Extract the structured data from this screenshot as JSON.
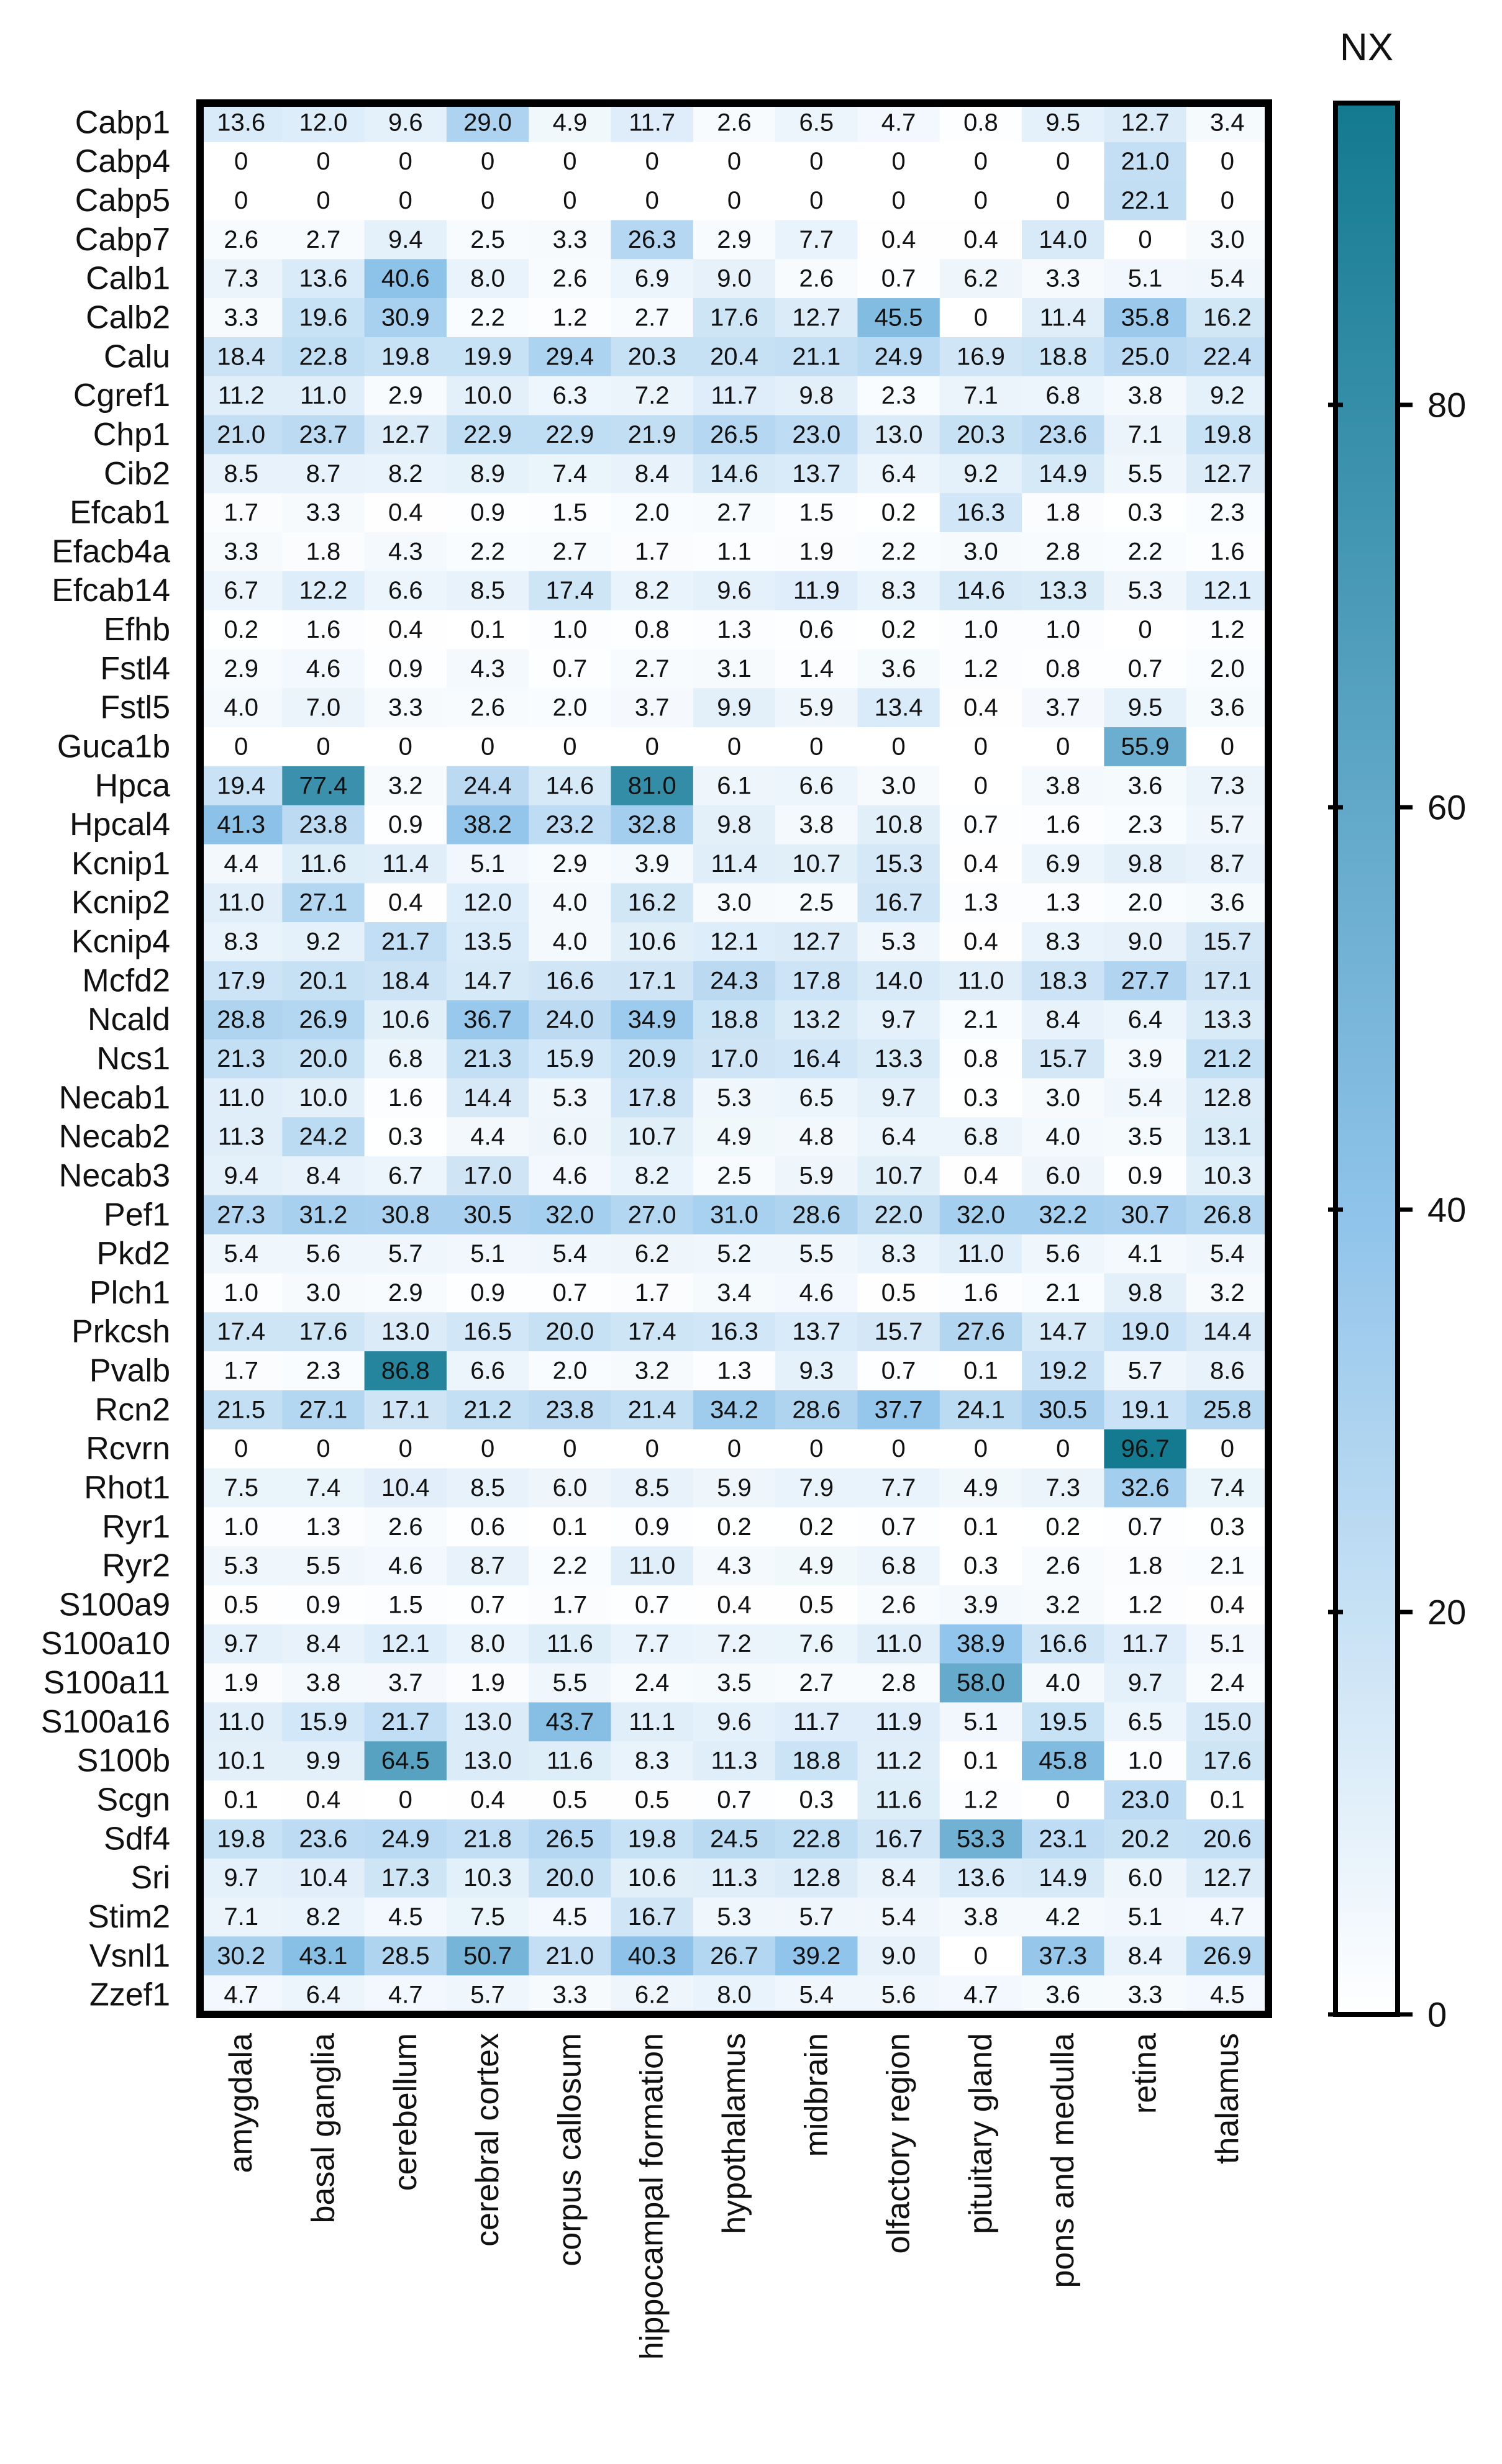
{
  "chart_data": {
    "type": "heatmap",
    "colorbar": {
      "title": "NX",
      "min": 0,
      "max": 95,
      "ticks": [
        0,
        20,
        40,
        60,
        80
      ],
      "tick_labels": [
        "0",
        "20",
        "40",
        "60",
        "80"
      ],
      "color_low": "#ffffff",
      "color_mid": "#8fc3ea",
      "color_high": "#137a8f"
    },
    "columns": [
      "amygdala",
      "basal ganglia",
      "cerebellum",
      "cerebral cortex",
      "corpus callosum",
      "hippocampal formation",
      "hypothalamus",
      "midbrain",
      "olfactory region",
      "pituitary gland",
      "pons and medulla",
      "retina",
      "thalamus"
    ],
    "rows": [
      {
        "gene": "Cabp1",
        "values": [
          "13.6",
          "12.0",
          "9.6",
          "29.0",
          "4.9",
          "11.7",
          "2.6",
          "6.5",
          "4.7",
          "0.8",
          "9.5",
          "12.7",
          "3.4"
        ]
      },
      {
        "gene": "Cabp4",
        "values": [
          "0",
          "0",
          "0",
          "0",
          "0",
          "0",
          "0",
          "0",
          "0",
          "0",
          "0",
          "21.0",
          "0"
        ]
      },
      {
        "gene": "Cabp5",
        "values": [
          "0",
          "0",
          "0",
          "0",
          "0",
          "0",
          "0",
          "0",
          "0",
          "0",
          "0",
          "22.1",
          "0"
        ]
      },
      {
        "gene": "Cabp7",
        "values": [
          "2.6",
          "2.7",
          "9.4",
          "2.5",
          "3.3",
          "26.3",
          "2.9",
          "7.7",
          "0.4",
          "0.4",
          "14.0",
          "0",
          "3.0"
        ]
      },
      {
        "gene": "Calb1",
        "values": [
          "7.3",
          "13.6",
          "40.6",
          "8.0",
          "2.6",
          "6.9",
          "9.0",
          "2.6",
          "0.7",
          "6.2",
          "3.3",
          "5.1",
          "5.4"
        ]
      },
      {
        "gene": "Calb2",
        "values": [
          "3.3",
          "19.6",
          "30.9",
          "2.2",
          "1.2",
          "2.7",
          "17.6",
          "12.7",
          "45.5",
          "0",
          "11.4",
          "35.8",
          "16.2"
        ]
      },
      {
        "gene": "Calu",
        "values": [
          "18.4",
          "22.8",
          "19.8",
          "19.9",
          "29.4",
          "20.3",
          "20.4",
          "21.1",
          "24.9",
          "16.9",
          "18.8",
          "25.0",
          "22.4"
        ]
      },
      {
        "gene": "Cgref1",
        "values": [
          "11.2",
          "11.0",
          "2.9",
          "10.0",
          "6.3",
          "7.2",
          "11.7",
          "9.8",
          "2.3",
          "7.1",
          "6.8",
          "3.8",
          "9.2"
        ]
      },
      {
        "gene": "Chp1",
        "values": [
          "21.0",
          "23.7",
          "12.7",
          "22.9",
          "22.9",
          "21.9",
          "26.5",
          "23.0",
          "13.0",
          "20.3",
          "23.6",
          "7.1",
          "19.8"
        ]
      },
      {
        "gene": "Cib2",
        "values": [
          "8.5",
          "8.7",
          "8.2",
          "8.9",
          "7.4",
          "8.4",
          "14.6",
          "13.7",
          "6.4",
          "9.2",
          "14.9",
          "5.5",
          "12.7"
        ]
      },
      {
        "gene": "Efcab1",
        "values": [
          "1.7",
          "3.3",
          "0.4",
          "0.9",
          "1.5",
          "2.0",
          "2.7",
          "1.5",
          "0.2",
          "16.3",
          "1.8",
          "0.3",
          "2.3"
        ]
      },
      {
        "gene": "Efacb4a",
        "values": [
          "3.3",
          "1.8",
          "4.3",
          "2.2",
          "2.7",
          "1.7",
          "1.1",
          "1.9",
          "2.2",
          "3.0",
          "2.8",
          "2.2",
          "1.6"
        ]
      },
      {
        "gene": "Efcab14",
        "values": [
          "6.7",
          "12.2",
          "6.6",
          "8.5",
          "17.4",
          "8.2",
          "9.6",
          "11.9",
          "8.3",
          "14.6",
          "13.3",
          "5.3",
          "12.1"
        ]
      },
      {
        "gene": "Efhb",
        "values": [
          "0.2",
          "1.6",
          "0.4",
          "0.1",
          "1.0",
          "0.8",
          "1.3",
          "0.6",
          "0.2",
          "1.0",
          "1.0",
          "0",
          "1.2"
        ]
      },
      {
        "gene": "Fstl4",
        "values": [
          "2.9",
          "4.6",
          "0.9",
          "4.3",
          "0.7",
          "2.7",
          "3.1",
          "1.4",
          "3.6",
          "1.2",
          "0.8",
          "0.7",
          "2.0"
        ]
      },
      {
        "gene": "Fstl5",
        "values": [
          "4.0",
          "7.0",
          "3.3",
          "2.6",
          "2.0",
          "3.7",
          "9.9",
          "5.9",
          "13.4",
          "0.4",
          "3.7",
          "9.5",
          "3.6"
        ]
      },
      {
        "gene": "Guca1b",
        "values": [
          "0",
          "0",
          "0",
          "0",
          "0",
          "0",
          "0",
          "0",
          "0",
          "0",
          "0",
          "55.9",
          "0"
        ]
      },
      {
        "gene": "Hpca",
        "values": [
          "19.4",
          "77.4",
          "3.2",
          "24.4",
          "14.6",
          "81.0",
          "6.1",
          "6.6",
          "3.0",
          "0",
          "3.8",
          "3.6",
          "7.3"
        ]
      },
      {
        "gene": "Hpcal4",
        "values": [
          "41.3",
          "23.8",
          "0.9",
          "38.2",
          "23.2",
          "32.8",
          "9.8",
          "3.8",
          "10.8",
          "0.7",
          "1.6",
          "2.3",
          "5.7"
        ]
      },
      {
        "gene": "Kcnip1",
        "values": [
          "4.4",
          "11.6",
          "11.4",
          "5.1",
          "2.9",
          "3.9",
          "11.4",
          "10.7",
          "15.3",
          "0.4",
          "6.9",
          "9.8",
          "8.7"
        ]
      },
      {
        "gene": "Kcnip2",
        "values": [
          "11.0",
          "27.1",
          "0.4",
          "12.0",
          "4.0",
          "16.2",
          "3.0",
          "2.5",
          "16.7",
          "1.3",
          "1.3",
          "2.0",
          "3.6"
        ]
      },
      {
        "gene": "Kcnip4",
        "values": [
          "8.3",
          "9.2",
          "21.7",
          "13.5",
          "4.0",
          "10.6",
          "12.1",
          "12.7",
          "5.3",
          "0.4",
          "8.3",
          "9.0",
          "15.7"
        ]
      },
      {
        "gene": "Mcfd2",
        "values": [
          "17.9",
          "20.1",
          "18.4",
          "14.7",
          "16.6",
          "17.1",
          "24.3",
          "17.8",
          "14.0",
          "11.0",
          "18.3",
          "27.7",
          "17.1"
        ]
      },
      {
        "gene": "Ncald",
        "values": [
          "28.8",
          "26.9",
          "10.6",
          "36.7",
          "24.0",
          "34.9",
          "18.8",
          "13.2",
          "9.7",
          "2.1",
          "8.4",
          "6.4",
          "13.3"
        ]
      },
      {
        "gene": "Ncs1",
        "values": [
          "21.3",
          "20.0",
          "6.8",
          "21.3",
          "15.9",
          "20.9",
          "17.0",
          "16.4",
          "13.3",
          "0.8",
          "15.7",
          "3.9",
          "21.2"
        ]
      },
      {
        "gene": "Necab1",
        "values": [
          "11.0",
          "10.0",
          "1.6",
          "14.4",
          "5.3",
          "17.8",
          "5.3",
          "6.5",
          "9.7",
          "0.3",
          "3.0",
          "5.4",
          "12.8"
        ]
      },
      {
        "gene": "Necab2",
        "values": [
          "11.3",
          "24.2",
          "0.3",
          "4.4",
          "6.0",
          "10.7",
          "4.9",
          "4.8",
          "6.4",
          "6.8",
          "4.0",
          "3.5",
          "13.1"
        ]
      },
      {
        "gene": "Necab3",
        "values": [
          "9.4",
          "8.4",
          "6.7",
          "17.0",
          "4.6",
          "8.2",
          "2.5",
          "5.9",
          "10.7",
          "0.4",
          "6.0",
          "0.9",
          "10.3"
        ]
      },
      {
        "gene": "Pef1",
        "values": [
          "27.3",
          "31.2",
          "30.8",
          "30.5",
          "32.0",
          "27.0",
          "31.0",
          "28.6",
          "22.0",
          "32.0",
          "32.2",
          "30.7",
          "26.8"
        ]
      },
      {
        "gene": "Pkd2",
        "values": [
          "5.4",
          "5.6",
          "5.7",
          "5.1",
          "5.4",
          "6.2",
          "5.2",
          "5.5",
          "8.3",
          "11.0",
          "5.6",
          "4.1",
          "5.4"
        ]
      },
      {
        "gene": "Plch1",
        "values": [
          "1.0",
          "3.0",
          "2.9",
          "0.9",
          "0.7",
          "1.7",
          "3.4",
          "4.6",
          "0.5",
          "1.6",
          "2.1",
          "9.8",
          "3.2"
        ]
      },
      {
        "gene": "Prkcsh",
        "values": [
          "17.4",
          "17.6",
          "13.0",
          "16.5",
          "20.0",
          "17.4",
          "16.3",
          "13.7",
          "15.7",
          "27.6",
          "14.7",
          "19.0",
          "14.4"
        ]
      },
      {
        "gene": "Pvalb",
        "values": [
          "1.7",
          "2.3",
          "86.8",
          "6.6",
          "2.0",
          "3.2",
          "1.3",
          "9.3",
          "0.7",
          "0.1",
          "19.2",
          "5.7",
          "8.6"
        ]
      },
      {
        "gene": "Rcn2",
        "values": [
          "21.5",
          "27.1",
          "17.1",
          "21.2",
          "23.8",
          "21.4",
          "34.2",
          "28.6",
          "37.7",
          "24.1",
          "30.5",
          "19.1",
          "25.8"
        ]
      },
      {
        "gene": "Rcvrn",
        "values": [
          "0",
          "0",
          "0",
          "0",
          "0",
          "0",
          "0",
          "0",
          "0",
          "0",
          "0",
          "96.7",
          "0"
        ]
      },
      {
        "gene": "Rhot1",
        "values": [
          "7.5",
          "7.4",
          "10.4",
          "8.5",
          "6.0",
          "8.5",
          "5.9",
          "7.9",
          "7.7",
          "4.9",
          "7.3",
          "32.6",
          "7.4"
        ]
      },
      {
        "gene": "Ryr1",
        "values": [
          "1.0",
          "1.3",
          "2.6",
          "0.6",
          "0.1",
          "0.9",
          "0.2",
          "0.2",
          "0.7",
          "0.1",
          "0.2",
          "0.7",
          "0.3"
        ]
      },
      {
        "gene": "Ryr2",
        "values": [
          "5.3",
          "5.5",
          "4.6",
          "8.7",
          "2.2",
          "11.0",
          "4.3",
          "4.9",
          "6.8",
          "0.3",
          "2.6",
          "1.8",
          "2.1"
        ]
      },
      {
        "gene": "S100a9",
        "values": [
          "0.5",
          "0.9",
          "1.5",
          "0.7",
          "1.7",
          "0.7",
          "0.4",
          "0.5",
          "2.6",
          "3.9",
          "3.2",
          "1.2",
          "0.4"
        ]
      },
      {
        "gene": "S100a10",
        "values": [
          "9.7",
          "8.4",
          "12.1",
          "8.0",
          "11.6",
          "7.7",
          "7.2",
          "7.6",
          "11.0",
          "38.9",
          "16.6",
          "11.7",
          "5.1"
        ]
      },
      {
        "gene": "S100a11",
        "values": [
          "1.9",
          "3.8",
          "3.7",
          "1.9",
          "5.5",
          "2.4",
          "3.5",
          "2.7",
          "2.8",
          "58.0",
          "4.0",
          "9.7",
          "2.4"
        ]
      },
      {
        "gene": "S100a16",
        "values": [
          "11.0",
          "15.9",
          "21.7",
          "13.0",
          "43.7",
          "11.1",
          "9.6",
          "11.7",
          "11.9",
          "5.1",
          "19.5",
          "6.5",
          "15.0"
        ]
      },
      {
        "gene": "S100b",
        "values": [
          "10.1",
          "9.9",
          "64.5",
          "13.0",
          "11.6",
          "8.3",
          "11.3",
          "18.8",
          "11.2",
          "0.1",
          "45.8",
          "1.0",
          "17.6"
        ]
      },
      {
        "gene": "Scgn",
        "values": [
          "0.1",
          "0.4",
          "0",
          "0.4",
          "0.5",
          "0.5",
          "0.7",
          "0.3",
          "11.6",
          "1.2",
          "0",
          "23.0",
          "0.1"
        ]
      },
      {
        "gene": "Sdf4",
        "values": [
          "19.8",
          "23.6",
          "24.9",
          "21.8",
          "26.5",
          "19.8",
          "24.5",
          "22.8",
          "16.7",
          "53.3",
          "23.1",
          "20.2",
          "20.6"
        ]
      },
      {
        "gene": "Sri",
        "values": [
          "9.7",
          "10.4",
          "17.3",
          "10.3",
          "20.0",
          "10.6",
          "11.3",
          "12.8",
          "8.4",
          "13.6",
          "14.9",
          "6.0",
          "12.7"
        ]
      },
      {
        "gene": "Stim2",
        "values": [
          "7.1",
          "8.2",
          "4.5",
          "7.5",
          "4.5",
          "16.7",
          "5.3",
          "5.7",
          "5.4",
          "3.8",
          "4.2",
          "5.1",
          "4.7"
        ]
      },
      {
        "gene": "Vsnl1",
        "values": [
          "30.2",
          "43.1",
          "28.5",
          "50.7",
          "21.0",
          "40.3",
          "26.7",
          "39.2",
          "9.0",
          "0",
          "37.3",
          "8.4",
          "26.9"
        ]
      },
      {
        "gene": "Zzef1",
        "values": [
          "4.7",
          "6.4",
          "4.7",
          "5.7",
          "3.3",
          "6.2",
          "8.0",
          "5.4",
          "5.6",
          "4.7",
          "3.6",
          "3.3",
          "4.5"
        ]
      }
    ]
  }
}
